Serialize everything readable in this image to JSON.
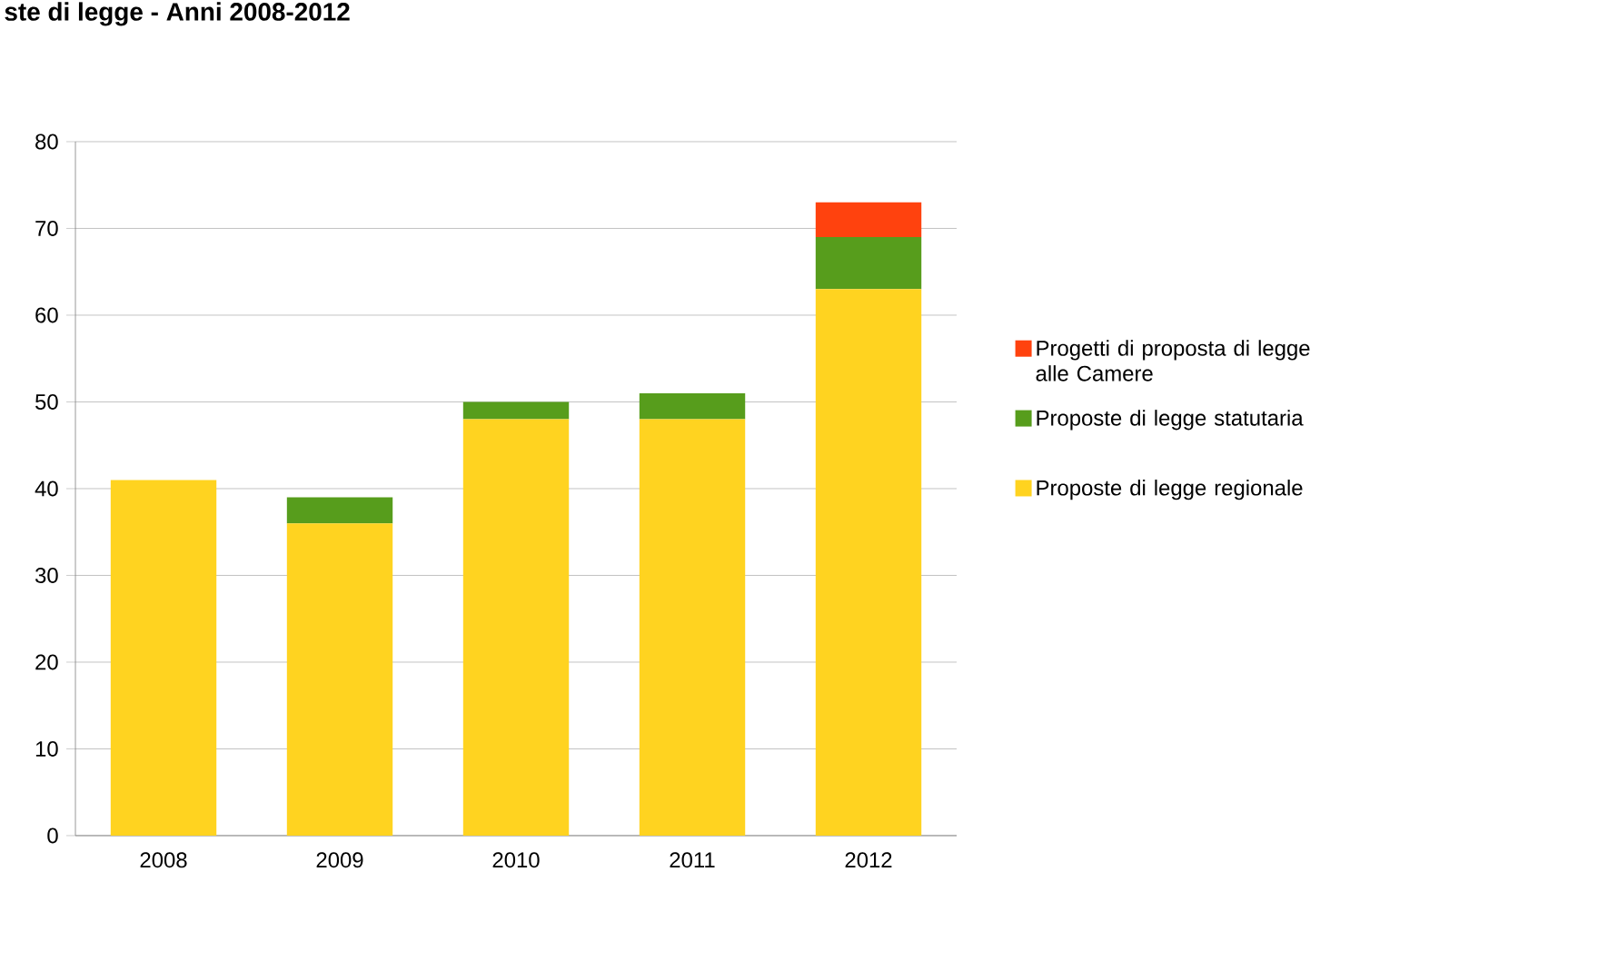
{
  "chart_data": {
    "type": "bar",
    "title": "ste di legge - Anni 2008-2012",
    "categories": [
      "2008",
      "2009",
      "2010",
      "2011",
      "2012"
    ],
    "stacked": true,
    "ylim": [
      0,
      80
    ],
    "yticks": [
      0,
      10,
      20,
      30,
      40,
      50,
      60,
      70,
      80
    ],
    "grid": "y",
    "legend": "right",
    "series": [
      {
        "name": "Proposte di legge regionale",
        "color": "#ffd320",
        "values": [
          41,
          36,
          48,
          48,
          63
        ]
      },
      {
        "name": "Proposte di legge statutaria",
        "color": "#579d1c",
        "values": [
          null,
          3,
          2,
          3,
          6
        ]
      },
      {
        "name": "Progetti di proposta di legge alle Camere",
        "color": "#ff420e",
        "values": [
          null,
          null,
          null,
          null,
          4
        ]
      }
    ]
  }
}
